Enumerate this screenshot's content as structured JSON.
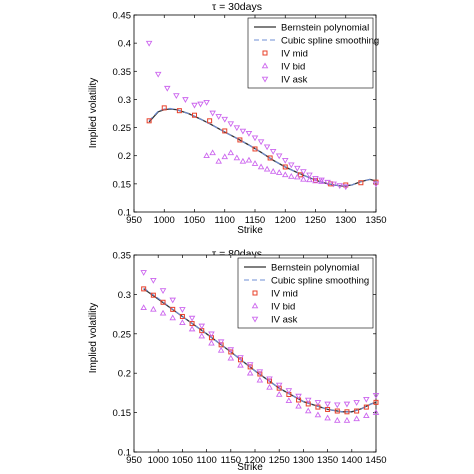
{
  "chart_data": [
    {
      "type": "line",
      "title": "τ = 30days",
      "xlabel": "Strike",
      "ylabel": "Implied volatility",
      "xlim": [
        950,
        1350
      ],
      "ylim": [
        0.1,
        0.45
      ],
      "xticks": [
        950,
        1000,
        1050,
        1100,
        1150,
        1200,
        1250,
        1300,
        1350
      ],
      "yticks": [
        0.1,
        0.15,
        0.2,
        0.25,
        0.3,
        0.35,
        0.4,
        0.45
      ],
      "ytick_labels": [
        "0.1",
        "0.15",
        "0.2",
        "0.25",
        "0.3",
        "0.35",
        "0.4",
        "0.45"
      ],
      "grid": false,
      "legend_position": "top-right",
      "series": [
        {
          "name": "Bernstein polynomial",
          "style": "line",
          "color": "#333333",
          "x": [
            975,
            990,
            1000,
            1010,
            1020,
            1040,
            1060,
            1080,
            1100,
            1120,
            1140,
            1160,
            1180,
            1200,
            1220,
            1240,
            1260,
            1280,
            1295,
            1310,
            1325,
            1340,
            1350
          ],
          "y": [
            0.26,
            0.278,
            0.282,
            0.283,
            0.282,
            0.275,
            0.265,
            0.254,
            0.242,
            0.231,
            0.219,
            0.206,
            0.192,
            0.18,
            0.17,
            0.161,
            0.153,
            0.148,
            0.146,
            0.148,
            0.154,
            0.158,
            0.155
          ]
        },
        {
          "name": "Cubic spline smoothing",
          "style": "dashed",
          "color": "#6f8fd6",
          "x": [
            975,
            990,
            1000,
            1010,
            1020,
            1040,
            1060,
            1080,
            1100,
            1120,
            1140,
            1160,
            1180,
            1200,
            1220,
            1240,
            1260,
            1280,
            1295,
            1310,
            1325,
            1340,
            1350
          ],
          "y": [
            0.262,
            0.279,
            0.283,
            0.284,
            0.282,
            0.275,
            0.265,
            0.254,
            0.242,
            0.231,
            0.219,
            0.206,
            0.192,
            0.18,
            0.17,
            0.161,
            0.153,
            0.148,
            0.146,
            0.148,
            0.154,
            0.158,
            0.155
          ]
        },
        {
          "name": "IV mid",
          "style": "square",
          "color": "#e8402a",
          "x": [
            975,
            1000,
            1025,
            1050,
            1075,
            1100,
            1125,
            1150,
            1175,
            1200,
            1225,
            1250,
            1275,
            1300,
            1325,
            1350
          ],
          "y": [
            0.262,
            0.285,
            0.28,
            0.272,
            0.262,
            0.244,
            0.228,
            0.212,
            0.196,
            0.18,
            0.166,
            0.156,
            0.15,
            0.148,
            0.152,
            0.153
          ]
        },
        {
          "name": "IV bid",
          "style": "triangle-up",
          "color": "#cc66ee",
          "x": [
            1070,
            1080,
            1090,
            1100,
            1110,
            1120,
            1130,
            1140,
            1150,
            1160,
            1170,
            1180,
            1190,
            1200,
            1210,
            1220,
            1230,
            1240,
            1250,
            1260
          ],
          "y": [
            0.2,
            0.205,
            0.19,
            0.198,
            0.205,
            0.196,
            0.19,
            0.192,
            0.186,
            0.18,
            0.176,
            0.172,
            0.17,
            0.166,
            0.163,
            0.162,
            0.158,
            0.157,
            0.155,
            0.154
          ]
        },
        {
          "name": "IV ask",
          "style": "triangle-down",
          "color": "#cc66ee",
          "x": [
            975,
            990,
            1005,
            1020,
            1035,
            1050,
            1060,
            1070,
            1080,
            1090,
            1100,
            1110,
            1120,
            1130,
            1140,
            1150,
            1160,
            1170,
            1180,
            1190,
            1200,
            1210,
            1220,
            1230,
            1240,
            1250,
            1260,
            1270,
            1280,
            1290,
            1300,
            1350
          ],
          "y": [
            0.4,
            0.345,
            0.32,
            0.307,
            0.3,
            0.29,
            0.292,
            0.295,
            0.276,
            0.27,
            0.265,
            0.257,
            0.25,
            0.244,
            0.24,
            0.232,
            0.225,
            0.216,
            0.208,
            0.2,
            0.192,
            0.184,
            0.178,
            0.172,
            0.166,
            0.16,
            0.157,
            0.153,
            0.15,
            0.147,
            0.145,
            0.15
          ]
        }
      ]
    },
    {
      "type": "line",
      "title": "τ = 80days",
      "xlabel": "Strike",
      "ylabel": "Implied volatility",
      "xlim": [
        950,
        1450
      ],
      "ylim": [
        0.1,
        0.35
      ],
      "xticks": [
        950,
        1000,
        1050,
        1100,
        1150,
        1200,
        1250,
        1300,
        1350,
        1400,
        1450
      ],
      "yticks": [
        0.1,
        0.15,
        0.2,
        0.25,
        0.3,
        0.35
      ],
      "ytick_labels": [
        "0.1",
        "0.15",
        "0.2",
        "0.25",
        "0.3",
        "0.35"
      ],
      "grid": false,
      "legend_position": "top-right",
      "series": [
        {
          "name": "Bernstein polynomial",
          "style": "line",
          "color": "#333333",
          "x": [
            970,
            1000,
            1050,
            1100,
            1150,
            1200,
            1250,
            1300,
            1350,
            1380,
            1400,
            1420,
            1440,
            1450
          ],
          "y": [
            0.307,
            0.294,
            0.272,
            0.25,
            0.227,
            0.203,
            0.181,
            0.164,
            0.154,
            0.151,
            0.151,
            0.155,
            0.161,
            0.163
          ]
        },
        {
          "name": "Cubic spline smoothing",
          "style": "dashed",
          "color": "#6f8fd6",
          "x": [
            970,
            1000,
            1050,
            1100,
            1150,
            1200,
            1250,
            1300,
            1350,
            1380,
            1400,
            1420,
            1440,
            1450
          ],
          "y": [
            0.308,
            0.295,
            0.272,
            0.25,
            0.227,
            0.203,
            0.181,
            0.164,
            0.154,
            0.151,
            0.151,
            0.155,
            0.161,
            0.163
          ]
        },
        {
          "name": "IV mid",
          "style": "square",
          "color": "#e8402a",
          "x": [
            970,
            990,
            1010,
            1030,
            1050,
            1070,
            1090,
            1110,
            1130,
            1150,
            1170,
            1190,
            1210,
            1230,
            1250,
            1270,
            1290,
            1310,
            1330,
            1350,
            1370,
            1390,
            1410,
            1430,
            1450
          ],
          "y": [
            0.307,
            0.299,
            0.29,
            0.281,
            0.272,
            0.263,
            0.254,
            0.245,
            0.236,
            0.227,
            0.217,
            0.208,
            0.199,
            0.19,
            0.181,
            0.173,
            0.166,
            0.161,
            0.157,
            0.154,
            0.152,
            0.151,
            0.152,
            0.157,
            0.163
          ]
        },
        {
          "name": "IV bid",
          "style": "triangle-up",
          "color": "#cc66ee",
          "x": [
            970,
            990,
            1010,
            1030,
            1050,
            1070,
            1090,
            1110,
            1130,
            1150,
            1170,
            1190,
            1210,
            1230,
            1250,
            1270,
            1290,
            1310,
            1330,
            1350,
            1370,
            1390,
            1410,
            1430,
            1450
          ],
          "y": [
            0.283,
            0.281,
            0.276,
            0.27,
            0.264,
            0.256,
            0.247,
            0.238,
            0.229,
            0.219,
            0.21,
            0.2,
            0.191,
            0.182,
            0.173,
            0.165,
            0.158,
            0.152,
            0.147,
            0.143,
            0.14,
            0.14,
            0.142,
            0.146,
            0.15
          ]
        },
        {
          "name": "IV ask",
          "style": "triangle-down",
          "color": "#cc66ee",
          "x": [
            970,
            990,
            1010,
            1030,
            1050,
            1070,
            1090,
            1110,
            1130,
            1150,
            1170,
            1190,
            1210,
            1230,
            1250,
            1270,
            1290,
            1310,
            1330,
            1350,
            1370,
            1390,
            1410,
            1430,
            1450
          ],
          "y": [
            0.328,
            0.318,
            0.305,
            0.293,
            0.281,
            0.27,
            0.26,
            0.25,
            0.24,
            0.23,
            0.22,
            0.211,
            0.202,
            0.193,
            0.185,
            0.178,
            0.171,
            0.166,
            0.163,
            0.161,
            0.16,
            0.161,
            0.163,
            0.167,
            0.172
          ]
        }
      ]
    }
  ]
}
